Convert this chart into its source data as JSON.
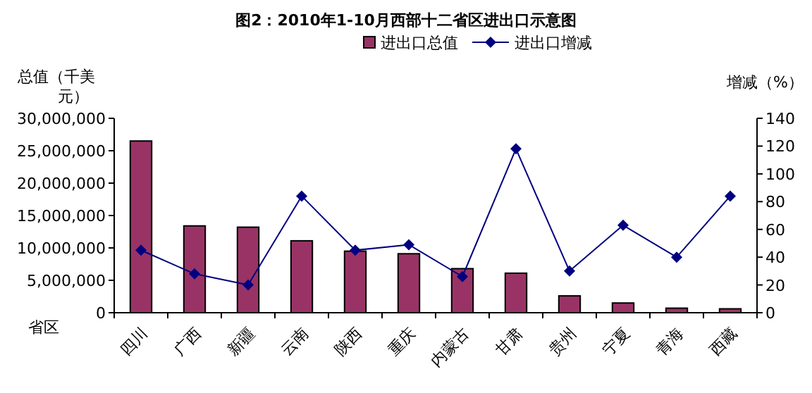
{
  "chart_data": {
    "type": "bar",
    "title": "图2：2010年1-10月西部十二省区进出口示意图",
    "ylabel": "总值（千美元）",
    "y2label": "增减（%）",
    "xlabel": "省区",
    "categories": [
      "四川",
      "广西",
      "新疆",
      "云南",
      "陕西",
      "重庆",
      "内蒙古",
      "甘肃",
      "贵州",
      "宁夏",
      "青海",
      "西藏"
    ],
    "series": [
      {
        "name": "进出口总值",
        "color": "#993366",
        "values": [
          26500000,
          13400000,
          13200000,
          11100000,
          9500000,
          9100000,
          6800000,
          6100000,
          2600000,
          1500000,
          700000,
          600000
        ]
      },
      {
        "name": "进出口增减",
        "type": "line",
        "axis": "y2",
        "color": "#000080",
        "marker": "diamond",
        "values": [
          45,
          28,
          20,
          84,
          45,
          49,
          26,
          118,
          30,
          63,
          40,
          84
        ]
      }
    ],
    "ylim": [
      0,
      30000000
    ],
    "yticks": [
      {
        "value": 0,
        "label": "0"
      },
      {
        "value": 5000000,
        "label": "5,000,000"
      },
      {
        "value": 10000000,
        "label": "10,000,000"
      },
      {
        "value": 15000000,
        "label": "15,000,000"
      },
      {
        "value": 20000000,
        "label": "20,000,000"
      },
      {
        "value": 25000000,
        "label": "25,000,000"
      },
      {
        "value": 30000000,
        "label": "30,000,000"
      }
    ],
    "y2lim": [
      0,
      140
    ],
    "y2ticks": [
      0,
      20,
      40,
      60,
      80,
      100,
      120,
      140
    ],
    "legend": "top",
    "grid": false
  }
}
